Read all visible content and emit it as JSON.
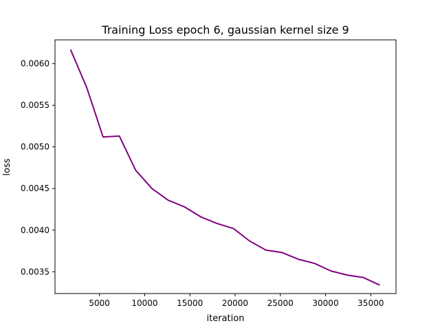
{
  "chart_data": {
    "type": "line",
    "title": "Training Loss epoch 6, gaussian kernel size 9",
    "xlabel": "iteration",
    "ylabel": "loss",
    "xlim": [
      82,
      37792
    ],
    "ylim": [
      0.003238,
      0.006286
    ],
    "xticks": [
      5000,
      10000,
      15000,
      20000,
      25000,
      30000,
      35000
    ],
    "yticks": [
      0.0035,
      0.004,
      0.0045,
      0.005,
      0.0055,
      0.006
    ],
    "xtick_labels": [
      "5000",
      "10000",
      "15000",
      "20000",
      "25000",
      "30000",
      "35000"
    ],
    "ytick_labels": [
      "0.0035",
      "0.0040",
      "0.0045",
      "0.0050",
      "0.0055",
      "0.0060"
    ],
    "grid": false,
    "series": [
      {
        "color": "#800080",
        "x": [
          1800,
          3600,
          5400,
          7200,
          9000,
          10800,
          12600,
          14400,
          16200,
          18000,
          19800,
          21600,
          23400,
          25200,
          27000,
          28800,
          30600,
          32400,
          34200,
          36000
        ],
        "y": [
          0.00617,
          0.00571,
          0.00512,
          0.00513,
          0.00472,
          0.0045,
          0.00436,
          0.00428,
          0.00416,
          0.00408,
          0.00402,
          0.00387,
          0.00376,
          0.00373,
          0.00365,
          0.0036,
          0.00351,
          0.00346,
          0.00343,
          0.00334
        ]
      }
    ]
  }
}
